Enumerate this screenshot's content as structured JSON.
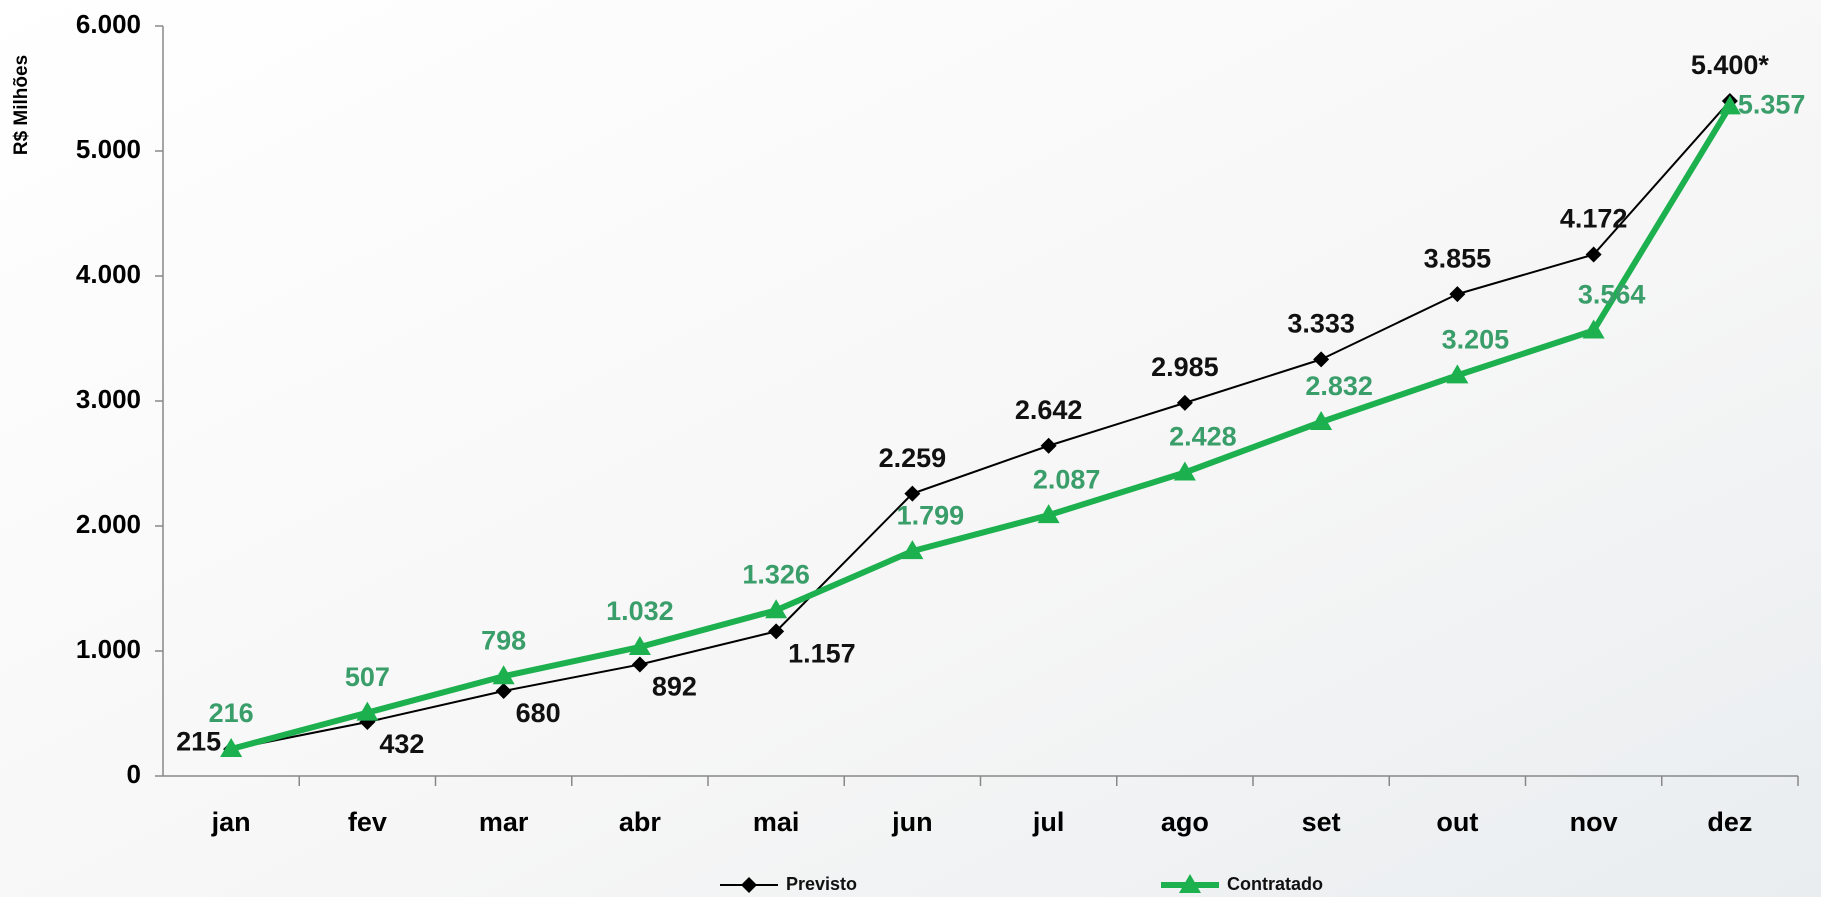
{
  "chart_data": {
    "type": "line",
    "y_label": "R$ Milhões",
    "categories": [
      "jan",
      "fev",
      "mar",
      "abr",
      "mai",
      "jun",
      "jul",
      "ago",
      "set",
      "out",
      "nov",
      "dez"
    ],
    "series": [
      {
        "name": "Previsto",
        "color": "#000000",
        "marker": "diamond",
        "values": [
          215,
          432,
          680,
          892,
          1157,
          2259,
          2642,
          2985,
          3333,
          3855,
          4172,
          5400
        ],
        "value_labels": [
          "215",
          "432",
          "680",
          "892",
          "1.157",
          "2.259",
          "2.642",
          "2.985",
          "3.333",
          "3.855",
          "4.172",
          "5.400*"
        ]
      },
      {
        "name": "Contratado",
        "color": "#1cb04e",
        "marker": "triangle",
        "values": [
          216,
          507,
          798,
          1032,
          1326,
          1799,
          2087,
          2428,
          2832,
          3205,
          3564,
          5357
        ],
        "value_labels": [
          "216",
          "507",
          "798",
          "1.032",
          "1.326",
          "1.799",
          "2.087",
          "2.428",
          "2.832",
          "3.205",
          "3.564",
          "5.357"
        ]
      }
    ],
    "ylim": [
      0,
      6000
    ],
    "yticks": [
      0,
      {
        "value": 1000,
        "label": "1.000"
      },
      {
        "value": 2000,
        "label": "2.000"
      },
      {
        "value": 3000,
        "label": "3.000"
      },
      {
        "value": 4000,
        "label": "4.000"
      },
      {
        "value": 5000,
        "label": "5.000"
      },
      {
        "value": 6000,
        "label": "6.000"
      }
    ],
    "grid": false
  }
}
